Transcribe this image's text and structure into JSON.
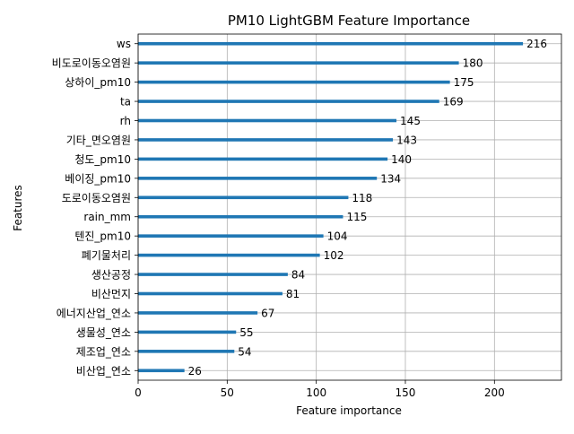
{
  "chart_data": {
    "type": "bar",
    "orientation": "horizontal",
    "title": "PM10 LightGBM Feature Importance",
    "xlabel": "Feature importance",
    "ylabel": "Features",
    "xlim": [
      0,
      237.6
    ],
    "x_ticks": [
      0,
      50,
      100,
      150,
      200
    ],
    "grid": true,
    "bar_color": "#1f77b4",
    "categories": [
      "ws",
      "비도로이동오염원",
      "상하이_pm10",
      "ta",
      "rh",
      "기타_면오염원",
      "청도_pm10",
      "베이징_pm10",
      "도로이동오염원",
      "rain_mm",
      "텐진_pm10",
      "폐기물처리",
      "생산공정",
      "비산먼지",
      "에너지산업_연소",
      "생물성_연소",
      "제조업_연소",
      "비산업_연소"
    ],
    "values": [
      216,
      180,
      175,
      169,
      145,
      143,
      140,
      134,
      118,
      115,
      104,
      102,
      84,
      81,
      67,
      55,
      54,
      26
    ]
  }
}
